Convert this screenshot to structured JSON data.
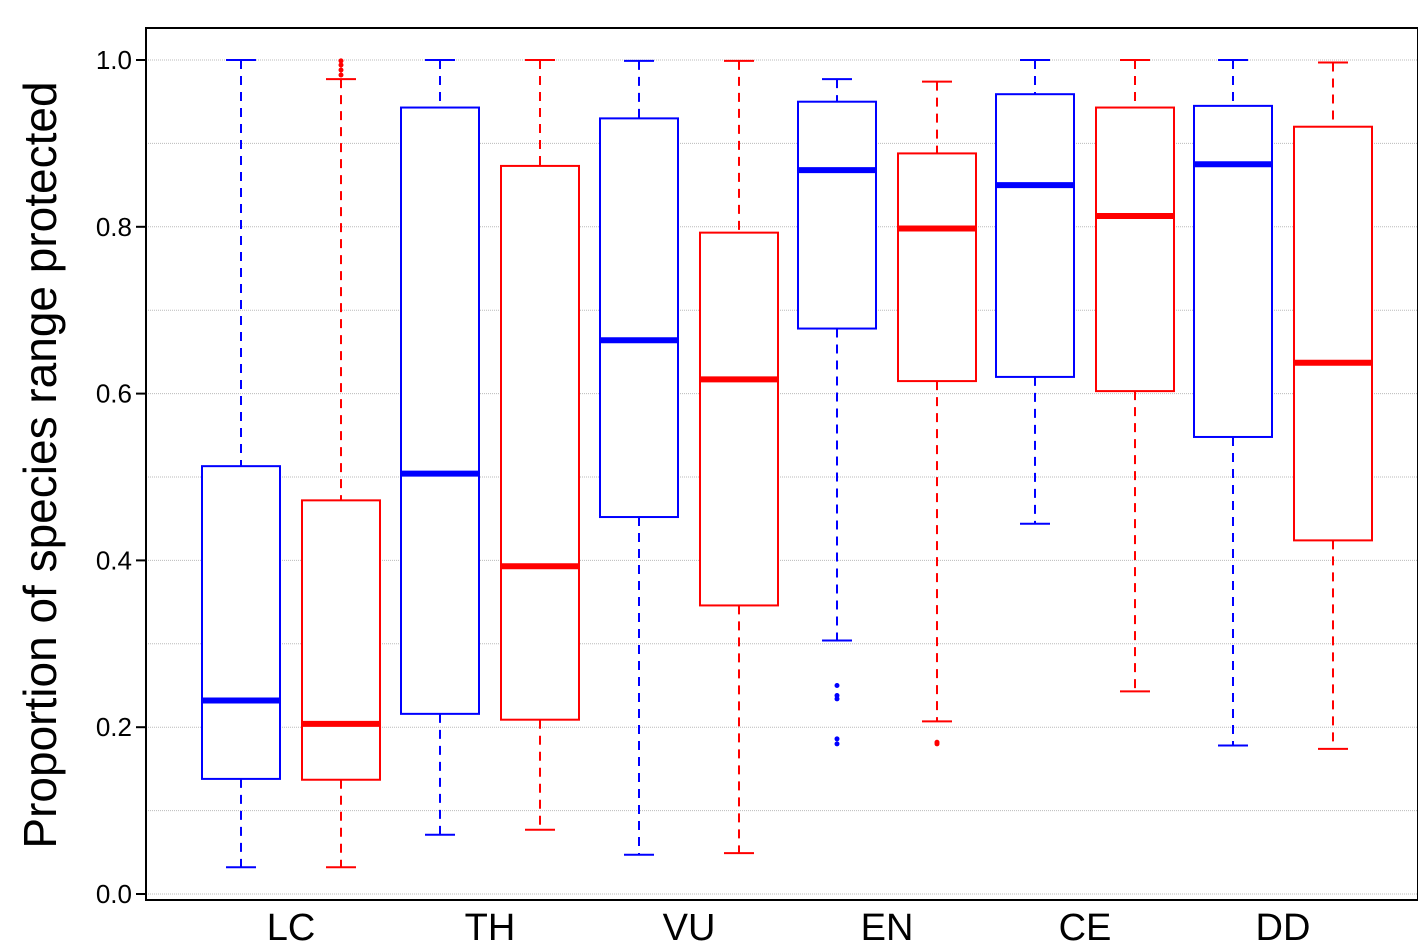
{
  "chart_data": {
    "type": "boxplot",
    "title": "",
    "xlabel": "",
    "ylabel": "Proportion of species range protected",
    "ylim": [
      0.0,
      1.0
    ],
    "y_ticks": [
      "0.0",
      "0.2",
      "0.4",
      "0.6",
      "0.8",
      "1.0"
    ],
    "grid": true,
    "categories": [
      "LC",
      "TH",
      "VU",
      "EN",
      "CE",
      "DD"
    ],
    "colors": {
      "group_a": "#0000ff",
      "group_b": "#ff0000",
      "grid": "#bbbbbb"
    },
    "series": [
      {
        "color": "#0000ff",
        "boxes": [
          {
            "category": "LC",
            "whisker_low": 0.032,
            "q1": 0.138,
            "median": 0.232,
            "q3": 0.513,
            "whisker_high": 1.0,
            "outliers": []
          },
          {
            "category": "TH",
            "whisker_low": 0.071,
            "q1": 0.216,
            "median": 0.504,
            "q3": 0.943,
            "whisker_high": 1.0,
            "outliers": []
          },
          {
            "category": "VU",
            "whisker_low": 0.047,
            "q1": 0.452,
            "median": 0.664,
            "q3": 0.93,
            "whisker_high": 0.999,
            "outliers": []
          },
          {
            "category": "EN",
            "whisker_low": 0.304,
            "q1": 0.678,
            "median": 0.868,
            "q3": 0.95,
            "whisker_high": 0.977,
            "outliers": [
              0.25,
              0.238,
              0.234,
              0.186,
              0.18
            ]
          },
          {
            "category": "CE",
            "whisker_low": 0.444,
            "q1": 0.62,
            "median": 0.85,
            "q3": 0.959,
            "whisker_high": 1.0,
            "outliers": []
          },
          {
            "category": "DD",
            "whisker_low": 0.178,
            "q1": 0.548,
            "median": 0.875,
            "q3": 0.945,
            "whisker_high": 1.0,
            "outliers": []
          }
        ]
      },
      {
        "color": "#ff0000",
        "boxes": [
          {
            "category": "LC",
            "whisker_low": 0.032,
            "q1": 0.137,
            "median": 0.204,
            "q3": 0.472,
            "whisker_high": 0.977,
            "outliers": [
              0.982,
              0.988,
              0.994,
              0.999
            ]
          },
          {
            "category": "TH",
            "whisker_low": 0.077,
            "q1": 0.209,
            "median": 0.393,
            "q3": 0.873,
            "whisker_high": 1.0,
            "outliers": []
          },
          {
            "category": "VU",
            "whisker_low": 0.049,
            "q1": 0.346,
            "median": 0.617,
            "q3": 0.793,
            "whisker_high": 0.999,
            "outliers": []
          },
          {
            "category": "EN",
            "whisker_low": 0.207,
            "q1": 0.615,
            "median": 0.798,
            "q3": 0.888,
            "whisker_high": 0.974,
            "outliers": [
              0.182,
              0.18
            ]
          },
          {
            "category": "CE",
            "whisker_low": 0.243,
            "q1": 0.603,
            "median": 0.813,
            "q3": 0.943,
            "whisker_high": 1.0,
            "outliers": []
          },
          {
            "category": "DD",
            "whisker_low": 0.174,
            "q1": 0.424,
            "median": 0.637,
            "q3": 0.92,
            "whisker_high": 0.997,
            "outliers": []
          }
        ]
      }
    ]
  }
}
